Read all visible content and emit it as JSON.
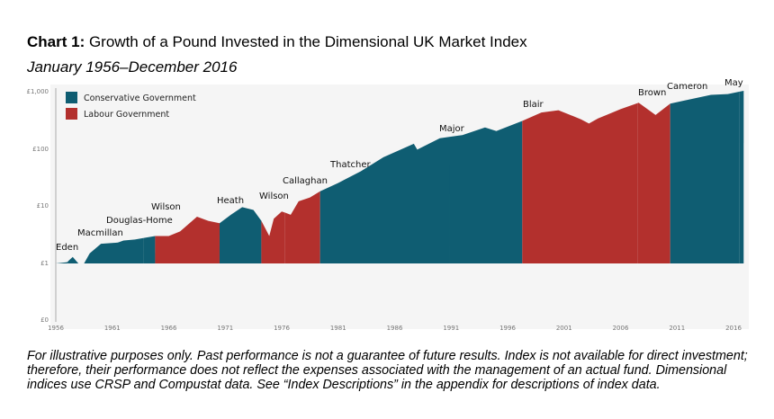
{
  "header": {
    "title_bold": "Chart 1:",
    "title_rest": " Growth of a Pound Invested in the Dimensional UK Market Index",
    "subtitle": "January 1956–December 2016"
  },
  "footnote": "For illustrative purposes only. Past performance is not a guarantee of future results. Index is not available for direct investment; therefore, their performance does not reflect the expenses associated with the management of an actual fund. Dimensional indices use CRSP and Compustat data. See “Index Descriptions” in the appendix for descriptions of index data.",
  "chart_data": {
    "type": "area",
    "title": "Growth of a Pound Invested in the Dimensional UK Market Index",
    "y_scale": "log",
    "y_ticks": [
      "£0",
      "£1",
      "£10",
      "£100",
      "£1,000"
    ],
    "x_ticks": [
      "1956",
      "1961",
      "1966",
      "1971",
      "1976",
      "1981",
      "1986",
      "1991",
      "1996",
      "2001",
      "2006",
      "2011",
      "2016"
    ],
    "xlim": [
      1956,
      2016.9
    ],
    "legend": [
      {
        "name": "Conservative Government",
        "color": "#0f5d72"
      },
      {
        "name": "Labour Government",
        "color": "#b3302d"
      }
    ],
    "legend_placement": "top-left",
    "eras": [
      {
        "label": "Eden",
        "party": "Conservative",
        "start": 1956,
        "end": 1957.1
      },
      {
        "label": "Macmillan",
        "party": "Conservative",
        "start": 1957.1,
        "end": 1963.8
      },
      {
        "label": "Douglas-Home",
        "party": "Conservative",
        "start": 1963.8,
        "end": 1964.8
      },
      {
        "label": "Wilson",
        "party": "Labour",
        "start": 1964.8,
        "end": 1970.5
      },
      {
        "label": "Heath",
        "party": "Conservative",
        "start": 1970.5,
        "end": 1974.2
      },
      {
        "label": "Wilson",
        "party": "Labour",
        "start": 1974.2,
        "end": 1976.3
      },
      {
        "label": "Callaghan",
        "party": "Labour",
        "start": 1976.3,
        "end": 1979.4
      },
      {
        "label": "Thatcher",
        "party": "Conservative",
        "start": 1979.4,
        "end": 1990.9
      },
      {
        "label": "Major",
        "party": "Conservative",
        "start": 1990.9,
        "end": 1997.3
      },
      {
        "label": "Blair",
        "party": "Labour",
        "start": 1997.3,
        "end": 2007.5
      },
      {
        "label": "Brown",
        "party": "Labour",
        "start": 2007.5,
        "end": 2010.4
      },
      {
        "label": "Cameron",
        "party": "Conservative",
        "start": 2010.4,
        "end": 2016.5
      },
      {
        "label": "May",
        "party": "Conservative",
        "start": 2016.5,
        "end": 2016.9
      }
    ],
    "series": {
      "x": [
        1956,
        1957,
        1957.5,
        1958,
        1958.5,
        1959,
        1960,
        1961.5,
        1962,
        1963,
        1964.8,
        1966,
        1967,
        1968.5,
        1969.5,
        1970.5,
        1971.5,
        1972.5,
        1973.5,
        1974.2,
        1974.9,
        1975.3,
        1976,
        1976.8,
        1977.5,
        1978.5,
        1979.4,
        1981,
        1983,
        1985,
        1987.7,
        1988,
        1990,
        1992,
        1994,
        1995,
        1997.3,
        1999,
        2000.5,
        2002.5,
        2003.2,
        2004,
        2006,
        2007.6,
        2009.1,
        2010.4,
        2012,
        2014,
        2015.5,
        2016.9
      ],
      "y": [
        1.0,
        1.05,
        1.3,
        0.95,
        1.0,
        1.5,
        2.2,
        2.3,
        2.5,
        2.6,
        3.0,
        3.0,
        3.6,
        6.5,
        5.5,
        5.0,
        7,
        9.5,
        8.5,
        5.5,
        3.0,
        6,
        8,
        7,
        12,
        14,
        18,
        25,
        40,
        70,
        120,
        95,
        150,
        170,
        230,
        200,
        300,
        420,
        460,
        320,
        270,
        330,
        480,
        620,
        380,
        600,
        700,
        850,
        880,
        1000
      ]
    }
  }
}
